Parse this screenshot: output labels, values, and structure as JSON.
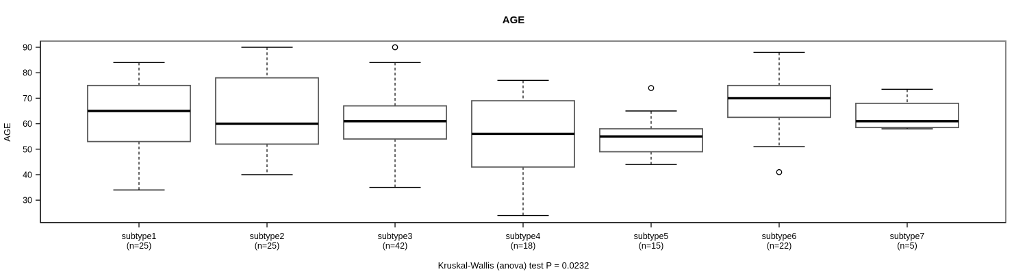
{
  "chart_data": {
    "type": "boxplot",
    "title": "AGE",
    "ylabel": "AGE",
    "xlabel": "",
    "caption": "Kruskal-Wallis (anova) test P = 0.0232",
    "y_ticks": [
      30,
      40,
      50,
      60,
      70,
      80,
      90
    ],
    "ylim": [
      21,
      93
    ],
    "grid": "off",
    "legend": "none",
    "groups": [
      {
        "label": "subtype1",
        "n_label": "(n=25)",
        "n": 25,
        "whisker_low": 34,
        "q1": 53,
        "median": 65,
        "q3": 75,
        "whisker_high": 84,
        "outliers": []
      },
      {
        "label": "subtype2",
        "n_label": "(n=25)",
        "n": 25,
        "whisker_low": 40,
        "q1": 52,
        "median": 60,
        "q3": 78,
        "whisker_high": 90,
        "outliers": []
      },
      {
        "label": "subtype3",
        "n_label": "(n=42)",
        "n": 42,
        "whisker_low": 35,
        "q1": 54,
        "median": 61,
        "q3": 67,
        "whisker_high": 84,
        "outliers": [
          90
        ]
      },
      {
        "label": "subtype4",
        "n_label": "(n=18)",
        "n": 18,
        "whisker_low": 24,
        "q1": 43,
        "median": 56,
        "q3": 69,
        "whisker_high": 77,
        "outliers": []
      },
      {
        "label": "subtype5",
        "n_label": "(n=15)",
        "n": 15,
        "whisker_low": 44,
        "q1": 49,
        "median": 55,
        "q3": 58,
        "whisker_high": 65,
        "outliers": [
          74
        ]
      },
      {
        "label": "subtype6",
        "n_label": "(n=22)",
        "n": 22,
        "whisker_low": 51,
        "q1": 62.5,
        "median": 70,
        "q3": 75,
        "whisker_high": 88,
        "outliers": [
          41
        ]
      },
      {
        "label": "subtype7",
        "n_label": "(n=5)",
        "n": 5,
        "whisker_low": 58,
        "q1": 58.5,
        "median": 61,
        "q3": 68,
        "whisker_high": 73.5,
        "outliers": []
      }
    ],
    "colors": {
      "background": "#ffffff",
      "frame": "#858585",
      "axis": "#1a1a1a",
      "box_border": "#595959",
      "box_fill": "#ffffff",
      "whisker": "#000000",
      "median": "#000000",
      "outlier": "#000000"
    }
  }
}
